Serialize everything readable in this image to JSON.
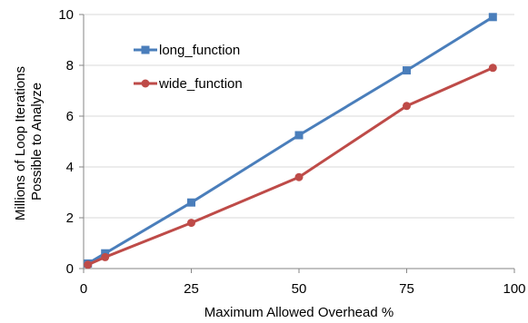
{
  "chart_data": {
    "type": "line",
    "title": "",
    "xlabel": "Maximum Allowed Overhead %",
    "ylabel_lines": [
      "Millions of Loop Iterations",
      "Possible to Analyze"
    ],
    "xlim": [
      0,
      100
    ],
    "ylim": [
      0,
      10
    ],
    "xticks": [
      0,
      25,
      50,
      75,
      100
    ],
    "yticks": [
      0,
      2,
      4,
      6,
      8,
      10
    ],
    "grid": "horizontal",
    "legend_position": "top-left",
    "series": [
      {
        "name": "long_function",
        "marker": "square",
        "color": "#4A7EBB",
        "x": [
          1,
          5,
          25,
          50,
          75,
          95
        ],
        "y": [
          0.2,
          0.6,
          2.6,
          5.25,
          7.8,
          9.9
        ]
      },
      {
        "name": "wide_function",
        "marker": "circle",
        "color": "#BE4B48",
        "x": [
          1,
          5,
          25,
          50,
          75,
          95
        ],
        "y": [
          0.15,
          0.45,
          1.8,
          3.6,
          6.4,
          7.9
        ]
      }
    ]
  }
}
